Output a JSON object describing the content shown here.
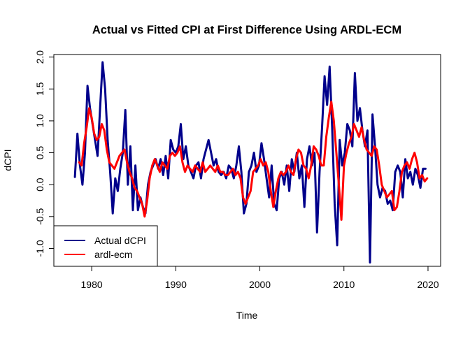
{
  "chart_data": {
    "type": "line",
    "title": "Actual vs Fitted CPI at First Difference Using ARDL-ECM",
    "xlabel": "Time",
    "ylabel": "dCPI",
    "xlim": [
      1975.5,
      2021.5
    ],
    "ylim": [
      -1.28,
      2.04
    ],
    "xticks": [
      1980,
      1990,
      2000,
      2010,
      2020
    ],
    "xtick_labels": [
      "1980",
      "1990",
      "2000",
      "2010",
      "2020"
    ],
    "yticks": [
      -1.0,
      -0.5,
      0.0,
      0.5,
      1.0,
      1.5,
      2.0
    ],
    "ytick_labels": [
      "-1.0",
      "-0.5",
      "0.0",
      "0.5",
      "1.0",
      "1.5",
      "2.0"
    ],
    "grid": false,
    "legend_position": "bottom-left",
    "series": [
      {
        "name": "Actual dCPI",
        "color": "#00008B",
        "x": [
          1978.0,
          1978.3,
          1978.6,
          1978.9,
          1979.2,
          1979.5,
          1979.8,
          1980.1,
          1980.4,
          1980.7,
          1981.0,
          1981.3,
          1981.6,
          1981.9,
          1982.2,
          1982.5,
          1982.8,
          1983.1,
          1983.4,
          1983.7,
          1984.0,
          1984.3,
          1984.6,
          1984.9,
          1985.2,
          1985.5,
          1985.8,
          1986.1,
          1986.4,
          1986.7,
          1987.0,
          1987.3,
          1987.6,
          1987.9,
          1988.2,
          1988.5,
          1988.8,
          1989.1,
          1989.4,
          1989.7,
          1990.0,
          1990.3,
          1990.6,
          1990.9,
          1991.2,
          1991.5,
          1991.8,
          1992.1,
          1992.4,
          1992.7,
          1993.0,
          1993.3,
          1993.6,
          1993.9,
          1994.2,
          1994.5,
          1994.8,
          1995.1,
          1995.4,
          1995.7,
          1996.0,
          1996.3,
          1996.6,
          1996.9,
          1997.2,
          1997.5,
          1997.8,
          1998.1,
          1998.4,
          1998.7,
          1999.0,
          1999.3,
          1999.6,
          1999.9,
          2000.2,
          2000.5,
          2000.8,
          2001.1,
          2001.4,
          2001.7,
          2002.0,
          2002.3,
          2002.6,
          2002.9,
          2003.2,
          2003.5,
          2003.8,
          2004.1,
          2004.4,
          2004.7,
          2005.0,
          2005.3,
          2005.6,
          2005.9,
          2006.2,
          2006.5,
          2006.8,
          2007.1,
          2007.4,
          2007.7,
          2008.0,
          2008.3,
          2008.6,
          2008.9,
          2009.2,
          2009.5,
          2009.8,
          2010.1,
          2010.4,
          2010.7,
          2011.0,
          2011.3,
          2011.6,
          2011.9,
          2012.2,
          2012.5,
          2012.8,
          2013.1,
          2013.4,
          2013.7,
          2014.0,
          2014.3,
          2014.6,
          2014.9,
          2015.2,
          2015.5,
          2015.8,
          2016.1,
          2016.4,
          2016.7,
          2017.0,
          2017.3,
          2017.6,
          2017.9,
          2018.2,
          2018.5,
          2018.8,
          2019.1,
          2019.4,
          2019.7
        ],
        "y": [
          0.12,
          0.8,
          0.3,
          0.0,
          0.5,
          1.55,
          1.2,
          0.95,
          0.7,
          0.45,
          1.2,
          1.92,
          1.5,
          0.7,
          0.2,
          -0.45,
          0.1,
          -0.1,
          0.25,
          0.5,
          1.17,
          0.0,
          0.6,
          -0.4,
          0.3,
          -0.4,
          -0.2,
          -0.35,
          -0.45,
          0.0,
          0.2,
          0.3,
          0.4,
          0.25,
          0.4,
          0.15,
          0.45,
          0.1,
          0.7,
          0.55,
          0.5,
          0.6,
          0.95,
          0.4,
          0.6,
          0.3,
          0.2,
          0.1,
          0.3,
          0.35,
          0.1,
          0.4,
          0.55,
          0.7,
          0.5,
          0.3,
          0.4,
          0.2,
          0.15,
          0.2,
          0.1,
          0.3,
          0.25,
          0.1,
          0.3,
          0.6,
          0.2,
          -0.45,
          -0.3,
          0.2,
          0.3,
          0.5,
          0.2,
          0.3,
          0.65,
          0.4,
          0.1,
          -0.2,
          0.3,
          -0.3,
          -0.4,
          0.1,
          0.2,
          0.0,
          0.3,
          -0.1,
          0.4,
          0.2,
          0.5,
          0.1,
          0.3,
          -0.35,
          0.4,
          0.6,
          0.3,
          0.5,
          -0.75,
          0.2,
          0.9,
          1.7,
          1.25,
          1.85,
          0.9,
          -0.3,
          -0.95,
          0.7,
          0.3,
          0.5,
          0.95,
          0.85,
          0.6,
          1.75,
          1.0,
          1.2,
          0.85,
          0.6,
          0.85,
          -1.22,
          1.1,
          0.6,
          0.0,
          -0.2,
          -0.05,
          -0.1,
          -0.3,
          -0.25,
          -0.4,
          0.2,
          0.3,
          0.2,
          -0.2,
          0.4,
          0.1,
          0.2,
          0.0,
          0.25,
          0.15,
          -0.05,
          0.25,
          0.25
        ]
      },
      {
        "name": "ardl-ecm",
        "color": "#FF0000",
        "x": [
          1978.5,
          1978.8,
          1979.1,
          1979.4,
          1979.7,
          1980.0,
          1980.3,
          1980.6,
          1980.9,
          1981.2,
          1981.5,
          1981.8,
          1982.1,
          1982.4,
          1982.7,
          1983.0,
          1983.3,
          1983.6,
          1983.9,
          1984.2,
          1984.5,
          1984.8,
          1985.1,
          1985.4,
          1985.7,
          1986.0,
          1986.3,
          1986.6,
          1986.9,
          1987.2,
          1987.5,
          1987.8,
          1988.1,
          1988.4,
          1988.7,
          1989.0,
          1989.3,
          1989.6,
          1989.9,
          1990.2,
          1990.5,
          1990.8,
          1991.1,
          1991.4,
          1991.7,
          1992.0,
          1992.3,
          1992.6,
          1992.9,
          1993.2,
          1993.5,
          1993.8,
          1994.1,
          1994.4,
          1994.7,
          1995.0,
          1995.3,
          1995.6,
          1995.9,
          1996.2,
          1996.5,
          1996.8,
          1997.1,
          1997.4,
          1997.7,
          1998.0,
          1998.3,
          1998.6,
          1998.9,
          1999.2,
          1999.5,
          1999.8,
          2000.1,
          2000.4,
          2000.7,
          2001.0,
          2001.3,
          2001.6,
          2001.9,
          2002.2,
          2002.5,
          2002.8,
          2003.1,
          2003.4,
          2003.7,
          2004.0,
          2004.3,
          2004.6,
          2004.9,
          2005.2,
          2005.5,
          2005.8,
          2006.1,
          2006.4,
          2006.7,
          2007.0,
          2007.3,
          2007.6,
          2007.9,
          2008.2,
          2008.5,
          2008.8,
          2009.1,
          2009.4,
          2009.7,
          2010.0,
          2010.3,
          2010.6,
          2010.9,
          2011.2,
          2011.5,
          2011.8,
          2012.1,
          2012.4,
          2012.7,
          2013.0,
          2013.3,
          2013.6,
          2013.9,
          2014.2,
          2014.5,
          2014.8,
          2015.1,
          2015.4,
          2015.7,
          2016.0,
          2016.3,
          2016.6,
          2016.9,
          2017.2,
          2017.5,
          2017.8,
          2018.1,
          2018.4,
          2018.7,
          2019.0,
          2019.3,
          2019.6,
          2019.9
        ],
        "y": [
          0.35,
          0.3,
          0.65,
          0.9,
          1.2,
          1.05,
          0.8,
          0.7,
          0.75,
          0.95,
          0.85,
          0.55,
          0.35,
          0.3,
          0.25,
          0.35,
          0.45,
          0.5,
          0.55,
          0.35,
          0.2,
          0.1,
          -0.05,
          -0.1,
          -0.2,
          -0.3,
          -0.5,
          -0.25,
          0.1,
          0.3,
          0.4,
          0.3,
          0.2,
          0.35,
          0.3,
          0.25,
          0.45,
          0.5,
          0.45,
          0.5,
          0.6,
          0.35,
          0.2,
          0.3,
          0.25,
          0.2,
          0.3,
          0.25,
          0.2,
          0.35,
          0.2,
          0.25,
          0.3,
          0.25,
          0.2,
          0.3,
          0.2,
          0.2,
          0.15,
          0.15,
          0.2,
          0.25,
          0.15,
          0.2,
          0.1,
          -0.2,
          -0.3,
          -0.2,
          -0.1,
          0.2,
          0.25,
          0.3,
          0.4,
          0.3,
          0.35,
          0.2,
          -0.1,
          -0.35,
          -0.1,
          0.1,
          0.2,
          0.15,
          0.2,
          0.3,
          0.2,
          0.15,
          0.4,
          0.55,
          0.5,
          0.3,
          0.25,
          0.1,
          0.3,
          0.6,
          0.55,
          0.45,
          0.3,
          0.3,
          0.75,
          1.05,
          1.3,
          1.0,
          0.5,
          0.0,
          -0.55,
          0.3,
          0.5,
          0.65,
          0.75,
          0.95,
          0.85,
          0.75,
          0.9,
          0.7,
          0.55,
          0.5,
          0.45,
          0.6,
          0.55,
          0.3,
          0.0,
          -0.1,
          -0.2,
          -0.15,
          -0.1,
          -0.4,
          -0.35,
          -0.1,
          0.2,
          0.3,
          0.35,
          0.25,
          0.4,
          0.5,
          0.35,
          0.1,
          0.15,
          0.05,
          0.1
        ]
      }
    ]
  }
}
